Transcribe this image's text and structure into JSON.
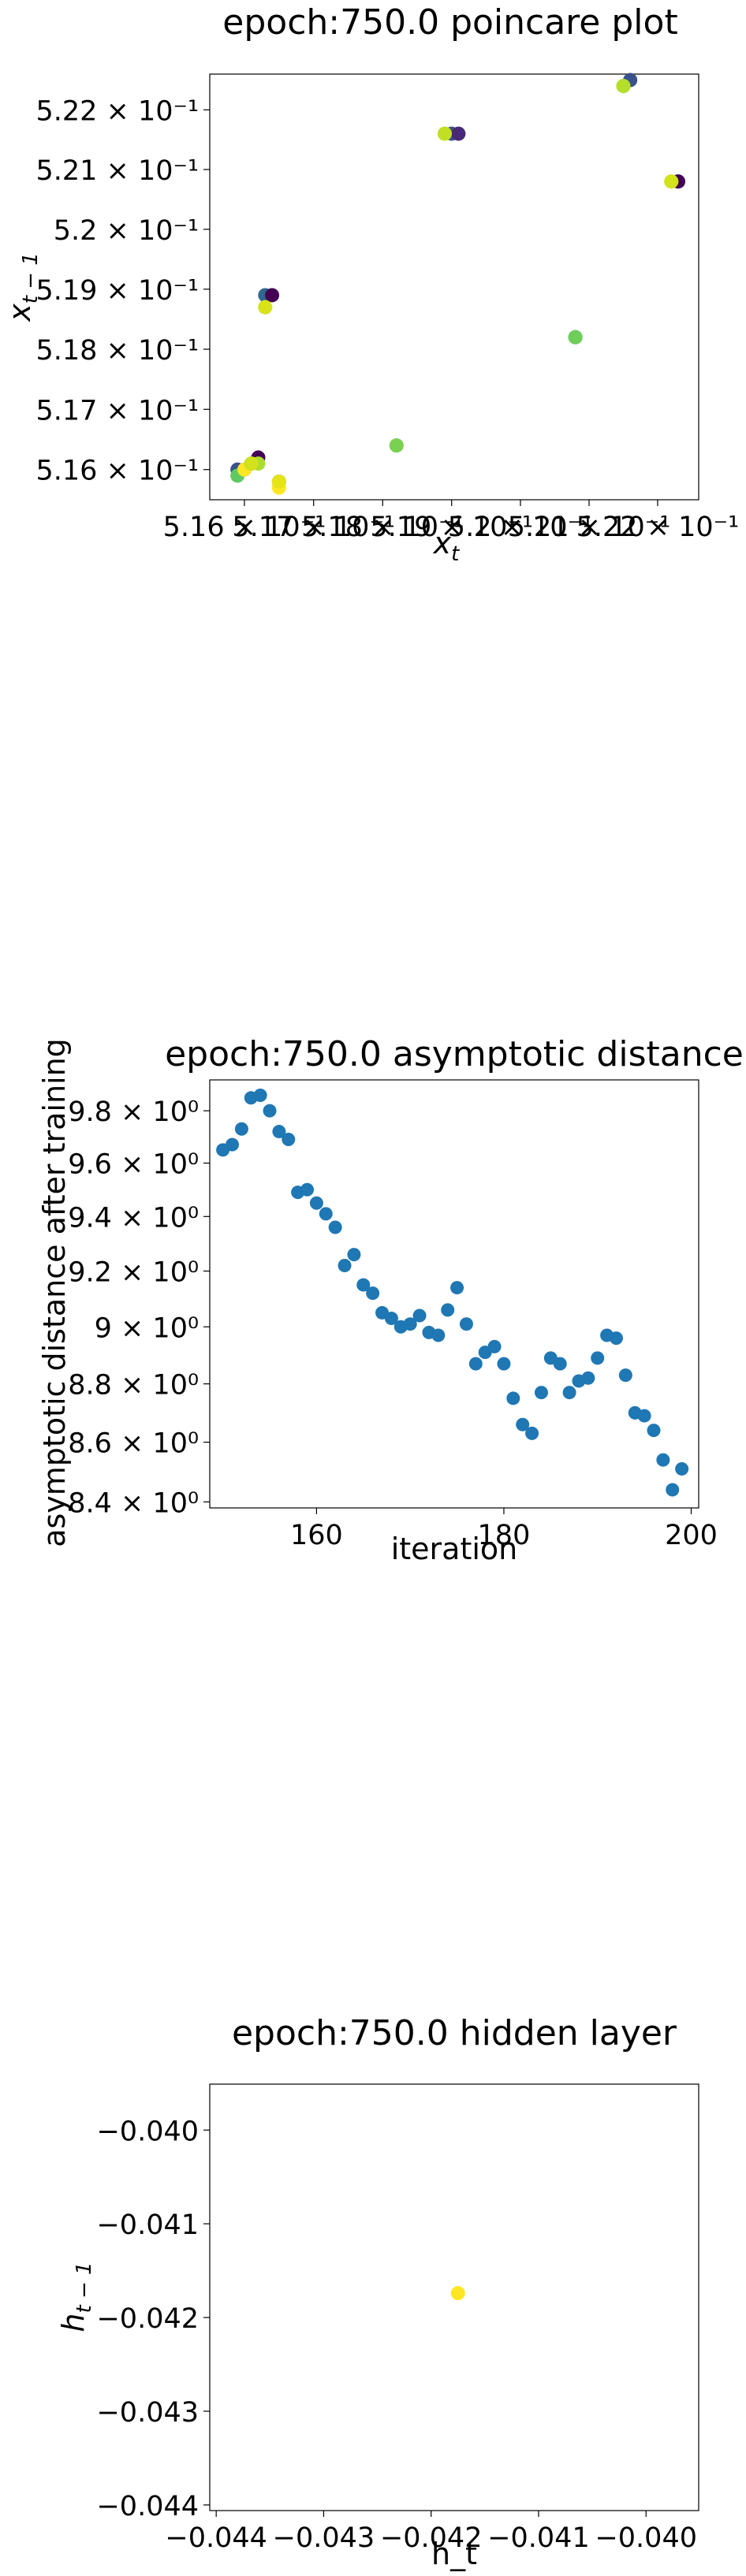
{
  "chart_data": [
    {
      "type": "scatter",
      "title": "epoch:750.0 poincare plot",
      "xlabel_base": "x",
      "xlabel_sub": "t",
      "ylabel_base": "x",
      "ylabel_sub": "t − 1",
      "xlim": [
        0.5155,
        0.5226
      ],
      "ylim": [
        0.5155,
        0.5226
      ],
      "scale": "log",
      "grid": false,
      "colormap": "viridis",
      "x_ticks": [
        {
          "value": 0.516,
          "label": "5.16 × 10⁻¹"
        },
        {
          "value": 0.517,
          "label": "5.17 × 10⁻¹"
        },
        {
          "value": 0.518,
          "label": "5.18 × 10⁻¹"
        },
        {
          "value": 0.519,
          "label": "5.19 × 10⁻¹"
        },
        {
          "value": 0.52,
          "label": "5.2 × 10⁻¹"
        },
        {
          "value": 0.521,
          "label": "5.21 × 10⁻¹"
        },
        {
          "value": 0.522,
          "label": "5.22 × 10⁻¹"
        }
      ],
      "y_ticks": [
        {
          "value": 0.516,
          "label": "5.16 × 10⁻¹"
        },
        {
          "value": 0.517,
          "label": "5.17 × 10⁻¹"
        },
        {
          "value": 0.518,
          "label": "5.18 × 10⁻¹"
        },
        {
          "value": 0.519,
          "label": "5.19 × 10⁻¹"
        },
        {
          "value": 0.52,
          "label": "5.2 × 10⁻¹"
        },
        {
          "value": 0.521,
          "label": "5.21 × 10⁻¹"
        },
        {
          "value": 0.522,
          "label": "5.22 × 10⁻¹"
        }
      ],
      "points": [
        {
          "x": 0.5159,
          "y": 0.516,
          "color": "#3b528b"
        },
        {
          "x": 0.516,
          "y": 0.516,
          "color": "#21918c"
        },
        {
          "x": 0.5159,
          "y": 0.5159,
          "color": "#5ec962"
        },
        {
          "x": 0.516,
          "y": 0.516,
          "color": "#fde725"
        },
        {
          "x": 0.5162,
          "y": 0.5162,
          "color": "#440154"
        },
        {
          "x": 0.5161,
          "y": 0.5161,
          "color": "#2c728e"
        },
        {
          "x": 0.5162,
          "y": 0.5161,
          "color": "#addc30"
        },
        {
          "x": 0.5161,
          "y": 0.5161,
          "color": "#d2e21b"
        },
        {
          "x": 0.5165,
          "y": 0.5158,
          "color": "#3e4a89"
        },
        {
          "x": 0.5165,
          "y": 0.5157,
          "color": "#fde725"
        },
        {
          "x": 0.5165,
          "y": 0.5158,
          "color": "#e5e419"
        },
        {
          "x": 0.5163,
          "y": 0.5189,
          "color": "#31688e"
        },
        {
          "x": 0.5164,
          "y": 0.5189,
          "color": "#440154"
        },
        {
          "x": 0.5163,
          "y": 0.5187,
          "color": "#addc30"
        },
        {
          "x": 0.5163,
          "y": 0.5187,
          "color": "#d8e219"
        },
        {
          "x": 0.5182,
          "y": 0.5164,
          "color": "#5ec962"
        },
        {
          "x": 0.5182,
          "y": 0.5164,
          "color": "#7ad151"
        },
        {
          "x": 0.519,
          "y": 0.5216,
          "color": "#3b528b"
        },
        {
          "x": 0.5191,
          "y": 0.5216,
          "color": "#482878"
        },
        {
          "x": 0.5189,
          "y": 0.5216,
          "color": "#b5de2b"
        },
        {
          "x": 0.5189,
          "y": 0.5216,
          "color": "#c2df23"
        },
        {
          "x": 0.5208,
          "y": 0.5182,
          "color": "#2a788e"
        },
        {
          "x": 0.5208,
          "y": 0.5182,
          "color": "#6ece58"
        },
        {
          "x": 0.5216,
          "y": 0.5225,
          "color": "#3b528b"
        },
        {
          "x": 0.5215,
          "y": 0.5224,
          "color": "#5ec962"
        },
        {
          "x": 0.5215,
          "y": 0.5224,
          "color": "#b5de2b"
        },
        {
          "x": 0.5223,
          "y": 0.5208,
          "color": "#31688e"
        },
        {
          "x": 0.5223,
          "y": 0.5208,
          "color": "#440154"
        },
        {
          "x": 0.5222,
          "y": 0.5208,
          "color": "#7ad151"
        },
        {
          "x": 0.5222,
          "y": 0.5208,
          "color": "#d2e21b"
        }
      ]
    },
    {
      "type": "scatter",
      "title": "epoch:750.0 asymptotic distance",
      "xlabel": "iteration",
      "ylabel": "asymptotic distance after training",
      "xlim": [
        148.6,
        200.8
      ],
      "ylim": [
        8.38,
        9.92
      ],
      "yscale": "log",
      "grid": false,
      "color": "#1f77b4",
      "x_ticks": [
        160,
        180,
        200
      ],
      "y_ticks": [
        {
          "value": 8.4,
          "label": "8.4 × 10⁰"
        },
        {
          "value": 8.6,
          "label": "8.6 × 10⁰"
        },
        {
          "value": 8.8,
          "label": "8.8 × 10⁰"
        },
        {
          "value": 9.0,
          "label": "9 × 10⁰"
        },
        {
          "value": 9.2,
          "label": "9.2 × 10⁰"
        },
        {
          "value": 9.4,
          "label": "9.4 × 10⁰"
        },
        {
          "value": 9.6,
          "label": "9.6 × 10⁰"
        },
        {
          "value": 9.8,
          "label": "9.8 × 10⁰"
        }
      ],
      "x": [
        150,
        151,
        152,
        153,
        154,
        155,
        156,
        157,
        158,
        159,
        160,
        161,
        162,
        163,
        164,
        165,
        166,
        167,
        168,
        169,
        170,
        171,
        172,
        173,
        174,
        175,
        176,
        177,
        178,
        179,
        180,
        181,
        182,
        183,
        184,
        185,
        186,
        187,
        188,
        189,
        190,
        191,
        192,
        193,
        194,
        195,
        196,
        197,
        198,
        199
      ],
      "y": [
        9.65,
        9.67,
        9.73,
        9.85,
        9.86,
        9.8,
        9.72,
        9.69,
        9.49,
        9.5,
        9.45,
        9.41,
        9.36,
        9.22,
        9.26,
        9.15,
        9.12,
        9.05,
        9.03,
        9.0,
        9.01,
        9.04,
        8.98,
        8.97,
        9.06,
        9.14,
        9.01,
        8.87,
        8.91,
        8.93,
        8.87,
        8.75,
        8.66,
        8.63,
        8.77,
        8.89,
        8.87,
        8.77,
        8.81,
        8.82,
        8.89,
        8.97,
        8.96,
        8.83,
        8.7,
        8.69,
        8.64,
        8.54,
        8.44,
        8.51
      ]
    },
    {
      "type": "scatter",
      "title": "epoch:750.0 hidden layer",
      "xlabel": "h_t",
      "ylabel_base": "h",
      "ylabel_sub": "t − 1",
      "xlim": [
        -0.04406,
        -0.03951
      ],
      "ylim": [
        -0.04406,
        -0.03951
      ],
      "grid": false,
      "x_ticks": [
        {
          "value": -0.044,
          "label": "−0.044"
        },
        {
          "value": -0.043,
          "label": "−0.043"
        },
        {
          "value": -0.042,
          "label": "−0.042"
        },
        {
          "value": -0.041,
          "label": "−0.041"
        },
        {
          "value": -0.04,
          "label": "−0.040"
        }
      ],
      "y_ticks": [
        {
          "value": -0.044,
          "label": "−0.044"
        },
        {
          "value": -0.043,
          "label": "−0.043"
        },
        {
          "value": -0.042,
          "label": "−0.042"
        },
        {
          "value": -0.041,
          "label": "−0.041"
        },
        {
          "value": -0.04,
          "label": "−0.040"
        }
      ],
      "points": [
        {
          "x": -0.04175,
          "y": -0.04174,
          "color": "#fde725"
        }
      ]
    }
  ]
}
